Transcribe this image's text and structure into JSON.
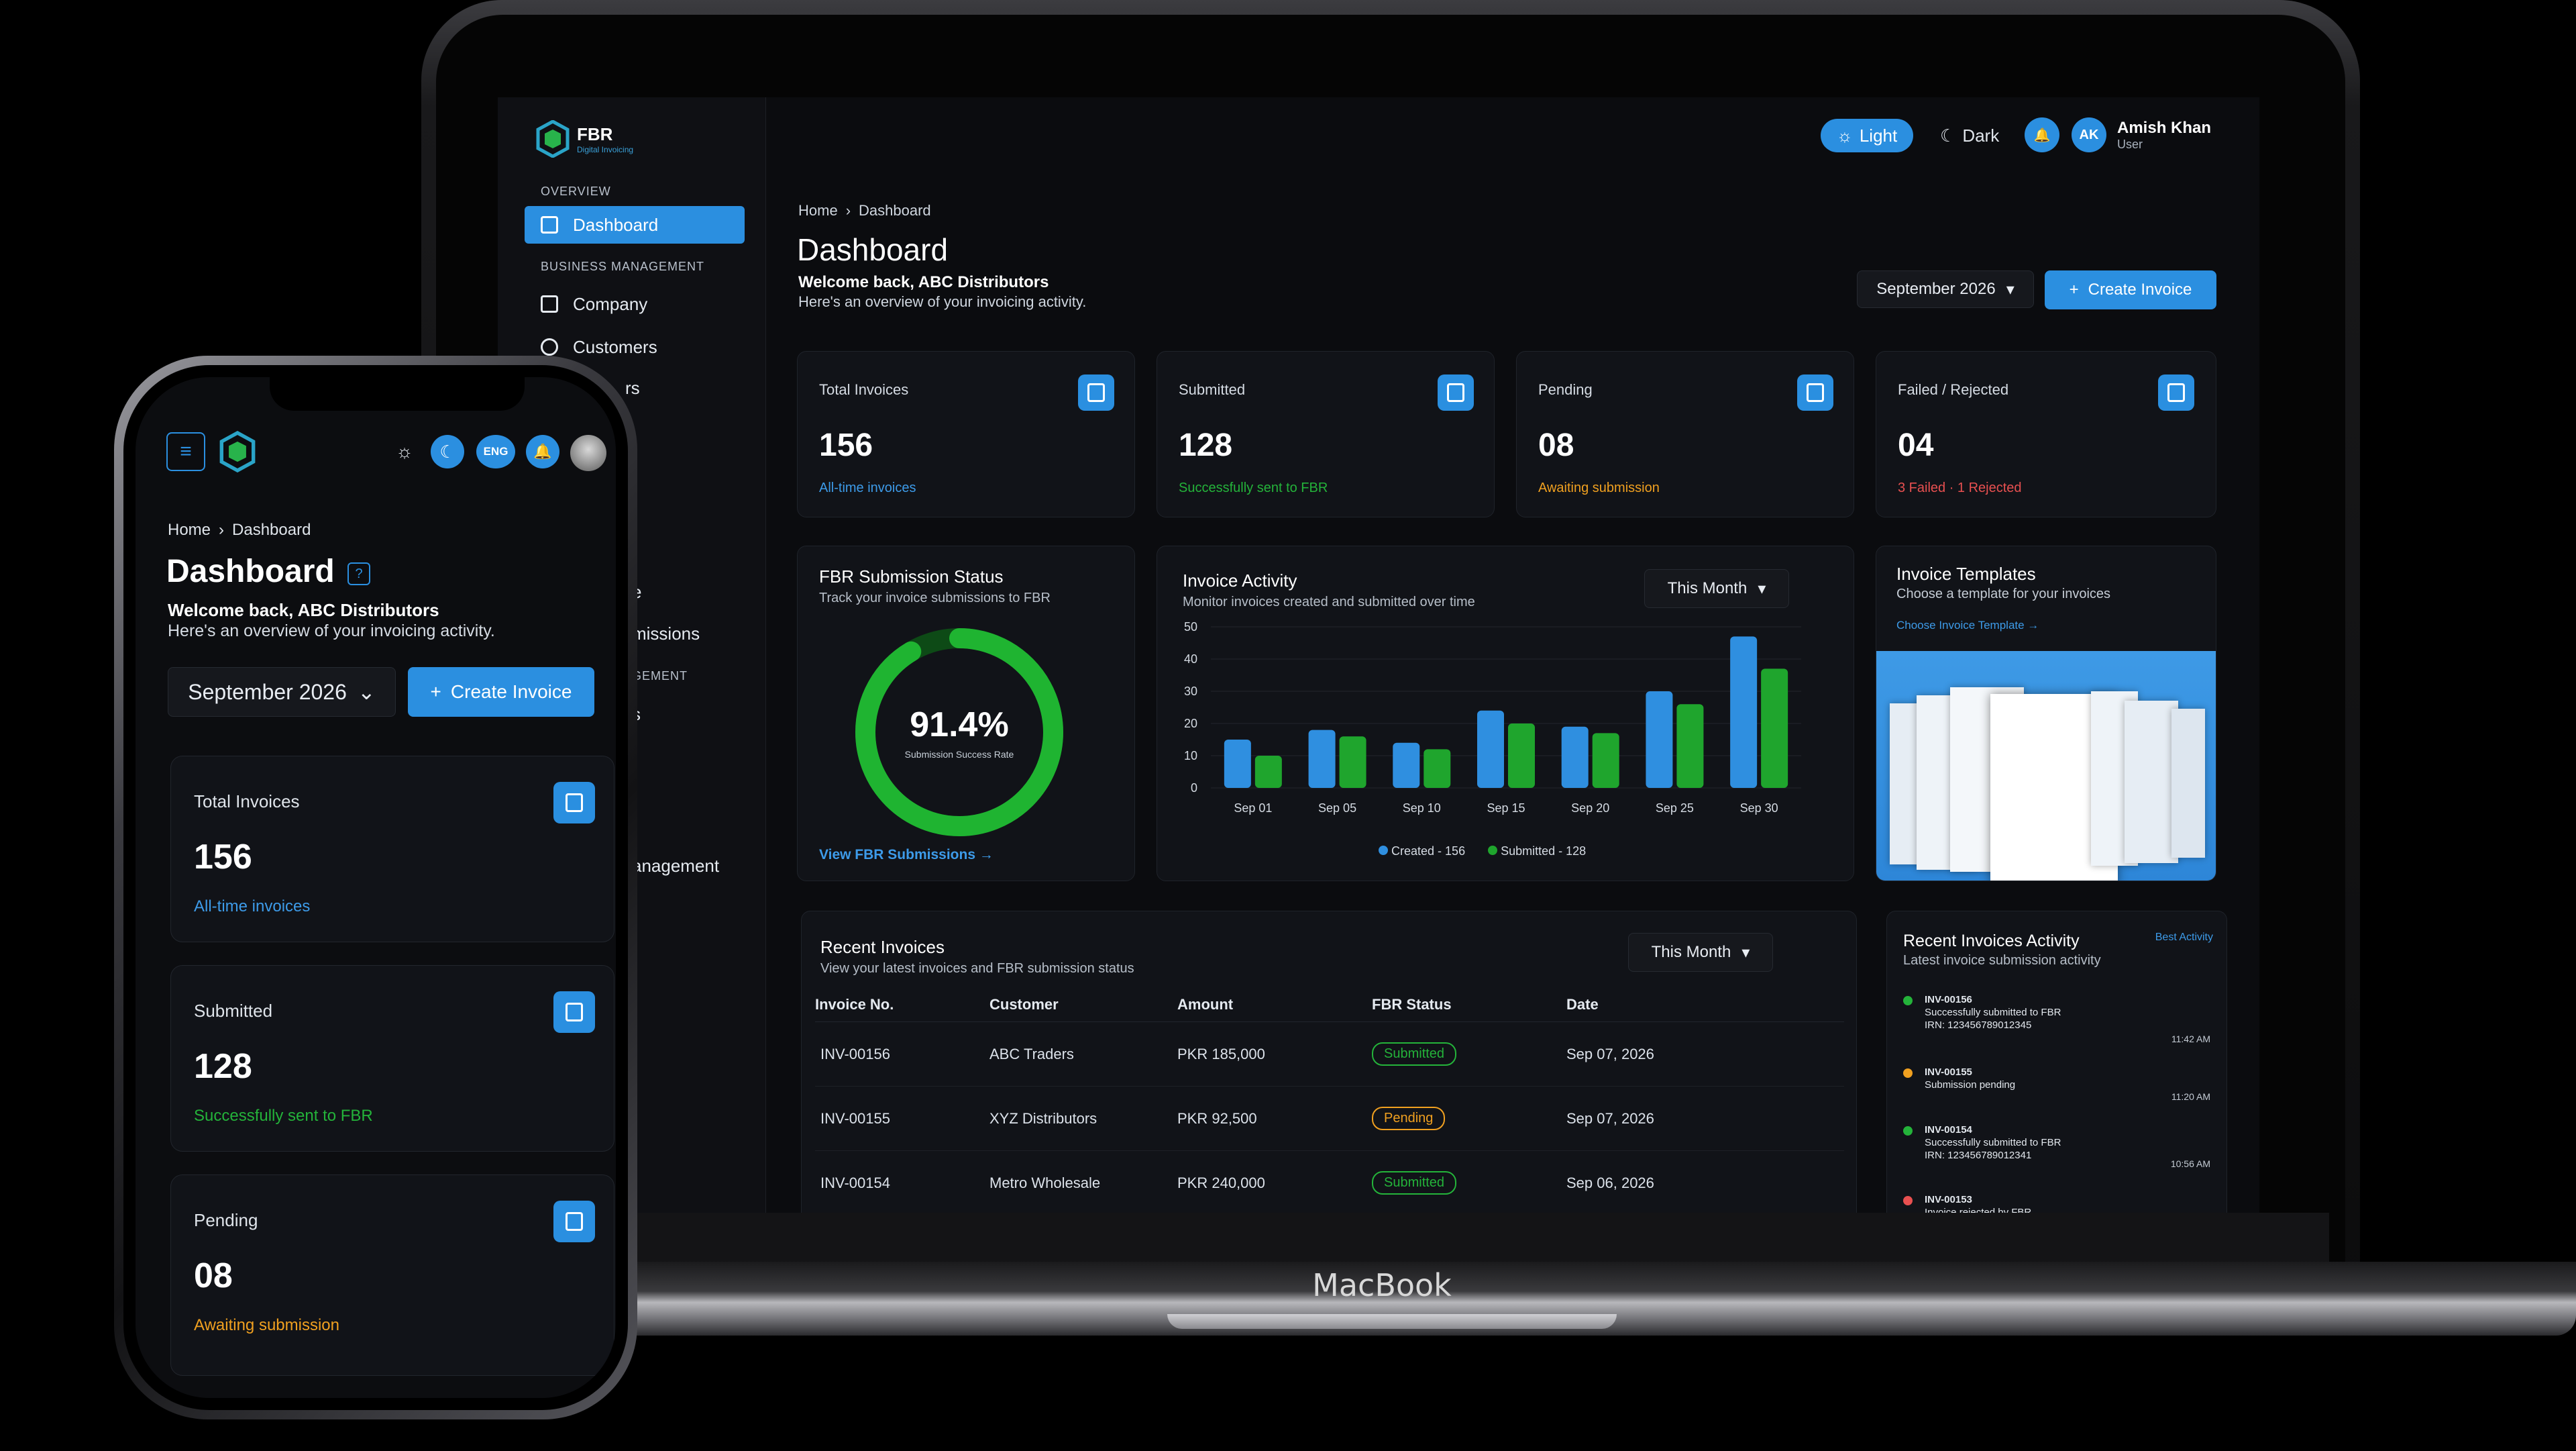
{
  "app": {
    "brand": "FBR",
    "brand_sub": "Digital Invoicing"
  },
  "sidebar": {
    "overview_heading": "OVERVIEW",
    "business_heading": "BUSINESS MANAGEMENT",
    "items": [
      {
        "label": "Dashboard"
      },
      {
        "label": "Company"
      },
      {
        "label": "Customers"
      }
    ],
    "partial_items": [
      "rs",
      "e",
      "missions",
      "GEMENT",
      "s",
      "anagement"
    ]
  },
  "header": {
    "theme_light": "Light",
    "theme_dark": "Dark",
    "user_initials": "AK",
    "user_name": "Amish Khan",
    "user_role": "User"
  },
  "breadcrumb": {
    "home": "Home",
    "current": "Dashboard"
  },
  "page": {
    "title": "Dashboard",
    "welcome": "Welcome back, ABC Distributors",
    "subtitle": "Here's an overview of your invoicing activity.",
    "month_select": "September 2026",
    "create_invoice": "Create Invoice"
  },
  "stats": [
    {
      "label": "Total Invoices",
      "value": "156",
      "note": "All-time invoices",
      "note_color": "#3d9be9"
    },
    {
      "label": "Submitted",
      "value": "128",
      "note": "Successfully sent to FBR",
      "note_color": "#24b33a"
    },
    {
      "label": "Pending",
      "value": "08",
      "note": "Awaiting submission",
      "note_color": "#f0a020"
    },
    {
      "label": "Failed / Rejected",
      "value": "04",
      "note": "3 Failed · 1 Rejected",
      "note_color": "#e85050"
    }
  ],
  "fbr_status": {
    "title": "FBR Submission Status",
    "subtitle": "Track your invoice submissions to FBR",
    "percent": "91.4%",
    "percent_value": 91.4,
    "caption": "Submission Success Rate",
    "link": "View FBR Submissions →"
  },
  "activity": {
    "title": "Invoice Activity",
    "subtitle": "Monitor invoices created and submitted over time",
    "filter": "This Month"
  },
  "chart_data": {
    "type": "bar",
    "categories": [
      "Sep 01",
      "Sep 05",
      "Sep 10",
      "Sep 15",
      "Sep 20",
      "Sep 25",
      "Sep 30"
    ],
    "series": [
      {
        "name": "Created - 156",
        "color": "#2f8fe0",
        "values": [
          15,
          18,
          14,
          24,
          19,
          30,
          47
        ]
      },
      {
        "name": "Submitted - 128",
        "color": "#1fa52d",
        "values": [
          10,
          16,
          12,
          20,
          17,
          26,
          37
        ]
      }
    ],
    "yticks": [
      "0",
      "10",
      "20",
      "30",
      "40",
      "50"
    ],
    "ylim": [
      0,
      50
    ],
    "legend": "bottom"
  },
  "templates": {
    "title": "Invoice Templates",
    "subtitle": "Choose a template for your invoices",
    "link": "Choose Invoice Template →"
  },
  "recent": {
    "title": "Recent Invoices",
    "subtitle": "View your latest invoices and FBR submission status",
    "filter": "This Month",
    "columns": [
      "Invoice No.",
      "Customer",
      "Amount",
      "FBR Status",
      "Date"
    ],
    "rows": [
      {
        "no": "INV-00156",
        "customer": "ABC Traders",
        "amount": "PKR 185,000",
        "status": "Submitted",
        "date": "Sep 07, 2026"
      },
      {
        "no": "INV-00155",
        "customer": "XYZ Distributors",
        "amount": "PKR 92,500",
        "status": "Pending",
        "date": "Sep 07, 2026"
      },
      {
        "no": "INV-00154",
        "customer": "Metro Wholesale",
        "amount": "PKR 240,000",
        "status": "Submitted",
        "date": "Sep 06, 2026"
      }
    ]
  },
  "activity_feed": {
    "title": "Recent Invoices Activity",
    "subtitle": "Latest invoice submission activity",
    "link": "Best Activity",
    "items": [
      {
        "id": "INV-00156",
        "line1": "Successfully submitted to FBR",
        "line2": "IRN: 123456789012345",
        "time": "11:42 AM",
        "color": "#24b33a"
      },
      {
        "id": "INV-00155",
        "line1": "Submission pending",
        "line2": "",
        "time": "11:20 AM",
        "color": "#f0a020"
      },
      {
        "id": "INV-00154",
        "line1": "Successfully submitted to FBR",
        "line2": "IRN: 123456789012341",
        "time": "10:56 AM",
        "color": "#24b33a"
      },
      {
        "id": "INV-00153",
        "line1": "Invoice rejected by FBR",
        "line2": "",
        "time": "",
        "color": "#e85050"
      }
    ]
  },
  "laptop_brand": "MacBook",
  "phone": {
    "lang": "ENG",
    "breadcrumb_home": "Home",
    "breadcrumb_current": "Dashboard",
    "title": "Dashboard",
    "help": "?",
    "welcome": "Welcome back, ABC Distributors",
    "subtitle": "Here's an overview of your invoicing activity.",
    "month_select": "September 2026",
    "create_invoice": "Create Invoice",
    "cards": [
      {
        "label": "Total Invoices",
        "value": "156",
        "note": "All-time invoices",
        "note_color": "#3d9be9"
      },
      {
        "label": "Submitted",
        "value": "128",
        "note": "Successfully sent to FBR",
        "note_color": "#24b33a"
      },
      {
        "label": "Pending",
        "value": "08",
        "note": "Awaiting submission",
        "note_color": "#f0a020"
      }
    ]
  }
}
